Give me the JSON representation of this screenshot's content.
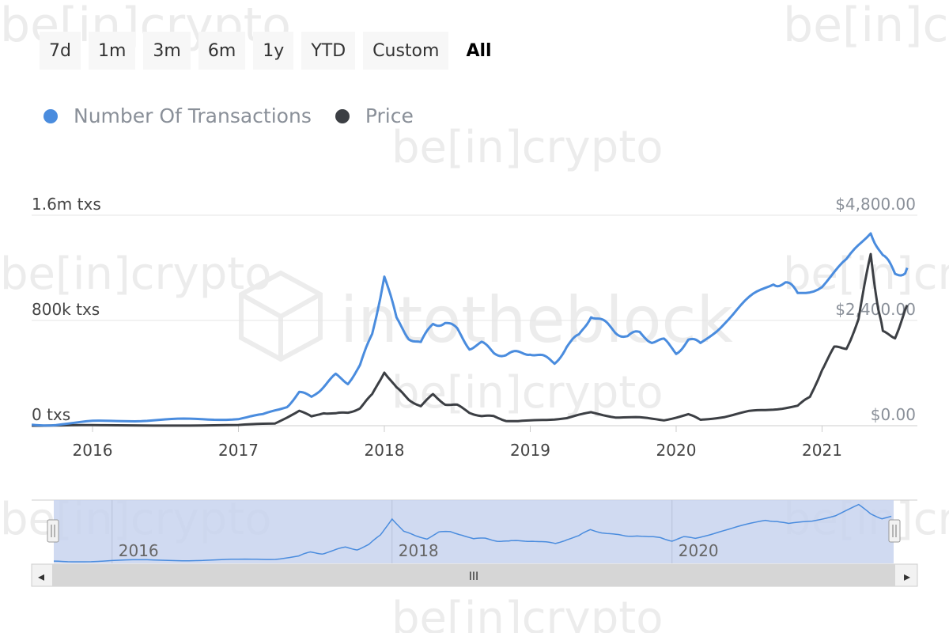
{
  "watermarks": {
    "brand_small": "be[in]crypto",
    "brand_large": "intotheblock"
  },
  "range_buttons": [
    {
      "label": "7d",
      "active": false
    },
    {
      "label": "1m",
      "active": false
    },
    {
      "label": "3m",
      "active": false
    },
    {
      "label": "6m",
      "active": false
    },
    {
      "label": "1y",
      "active": false
    },
    {
      "label": "YTD",
      "active": false
    },
    {
      "label": "Custom",
      "active": false
    },
    {
      "label": "All",
      "active": true
    }
  ],
  "navigator": {
    "x_tick_labels": [
      "2016",
      "2018",
      "2020"
    ],
    "grip_label": "III",
    "scroll_left": "◂",
    "scroll_right": "▸"
  },
  "chart_data": {
    "type": "line",
    "title": "",
    "x_tick_labels": [
      "2016",
      "2017",
      "2018",
      "2019",
      "2020",
      "2021"
    ],
    "y_left": {
      "tick_labels": [
        "0 txs",
        "800k txs",
        "1.6m txs"
      ],
      "range": [
        0,
        1600000
      ]
    },
    "y_right": {
      "tick_labels": [
        "$0.00",
        "$2,400.00",
        "$4,800.00"
      ],
      "range": [
        0,
        4800
      ]
    },
    "grid": true,
    "legend_position": "top-left",
    "series": [
      {
        "name": "Number Of Transactions",
        "axis": "left",
        "color": "#4a8cde",
        "points": [
          [
            "2015-08",
            5000
          ],
          [
            "2015-10",
            10000
          ],
          [
            "2016-01",
            30000
          ],
          [
            "2016-04",
            40000
          ],
          [
            "2016-07",
            45000
          ],
          [
            "2016-10",
            48000
          ],
          [
            "2017-01",
            55000
          ],
          [
            "2017-03",
            80000
          ],
          [
            "2017-05",
            150000
          ],
          [
            "2017-06",
            250000
          ],
          [
            "2017-07",
            220000
          ],
          [
            "2017-08",
            300000
          ],
          [
            "2017-09",
            380000
          ],
          [
            "2017-10",
            330000
          ],
          [
            "2017-11",
            450000
          ],
          [
            "2017-12",
            700000
          ],
          [
            "2018-01",
            1150000
          ],
          [
            "2018-02",
            800000
          ],
          [
            "2018-03",
            680000
          ],
          [
            "2018-04",
            620000
          ],
          [
            "2018-05",
            780000
          ],
          [
            "2018-06",
            790000
          ],
          [
            "2018-07",
            720000
          ],
          [
            "2018-08",
            600000
          ],
          [
            "2018-09",
            620000
          ],
          [
            "2018-10",
            560000
          ],
          [
            "2018-11",
            540000
          ],
          [
            "2018-12",
            550000
          ],
          [
            "2019-01",
            560000
          ],
          [
            "2019-02",
            520000
          ],
          [
            "2019-03",
            480000
          ],
          [
            "2019-04",
            600000
          ],
          [
            "2019-05",
            680000
          ],
          [
            "2019-06",
            850000
          ],
          [
            "2019-07",
            780000
          ],
          [
            "2019-08",
            720000
          ],
          [
            "2019-09",
            680000
          ],
          [
            "2019-10",
            700000
          ],
          [
            "2019-11",
            650000
          ],
          [
            "2019-12",
            640000
          ],
          [
            "2020-01",
            560000
          ],
          [
            "2020-02",
            650000
          ],
          [
            "2020-03",
            620000
          ],
          [
            "2020-05",
            800000
          ],
          [
            "2020-07",
            950000
          ],
          [
            "2020-09",
            1100000
          ],
          [
            "2020-10",
            1080000
          ],
          [
            "2020-11",
            1000000
          ],
          [
            "2021-01",
            1080000
          ],
          [
            "2021-03",
            1230000
          ],
          [
            "2021-05",
            1500000
          ],
          [
            "2021-06",
            1280000
          ],
          [
            "2021-07",
            1150000
          ],
          [
            "2021-08",
            1200000
          ]
        ]
      },
      {
        "name": "Price",
        "axis": "right",
        "color": "#3c3f44",
        "points": [
          [
            "2015-08",
            1
          ],
          [
            "2016-01",
            2
          ],
          [
            "2016-07",
            12
          ],
          [
            "2017-01",
            10
          ],
          [
            "2017-04",
            50
          ],
          [
            "2017-06",
            350
          ],
          [
            "2017-07",
            200
          ],
          [
            "2017-08",
            300
          ],
          [
            "2017-09",
            270
          ],
          [
            "2017-10",
            300
          ],
          [
            "2017-11",
            400
          ],
          [
            "2017-12",
            700
          ],
          [
            "2018-01",
            1250
          ],
          [
            "2018-02",
            850
          ],
          [
            "2018-03",
            600
          ],
          [
            "2018-04",
            450
          ],
          [
            "2018-05",
            700
          ],
          [
            "2018-06",
            500
          ],
          [
            "2018-07",
            460
          ],
          [
            "2018-08",
            300
          ],
          [
            "2018-09",
            220
          ],
          [
            "2018-10",
            210
          ],
          [
            "2018-11",
            120
          ],
          [
            "2018-12",
            90
          ],
          [
            "2019-02",
            140
          ],
          [
            "2019-04",
            170
          ],
          [
            "2019-06",
            300
          ],
          [
            "2019-08",
            200
          ],
          [
            "2019-10",
            180
          ],
          [
            "2019-12",
            130
          ],
          [
            "2020-02",
            260
          ],
          [
            "2020-03",
            130
          ],
          [
            "2020-05",
            210
          ],
          [
            "2020-07",
            320
          ],
          [
            "2020-09",
            380
          ],
          [
            "2020-11",
            450
          ],
          [
            "2020-12",
            650
          ],
          [
            "2021-01",
            1300
          ],
          [
            "2021-02",
            1750
          ],
          [
            "2021-03",
            1800
          ],
          [
            "2021-04",
            2400
          ],
          [
            "2021-05",
            3900
          ],
          [
            "2021-05-20",
            2700
          ],
          [
            "2021-06",
            2100
          ],
          [
            "2021-07",
            2050
          ],
          [
            "2021-08",
            2750
          ]
        ]
      }
    ]
  }
}
